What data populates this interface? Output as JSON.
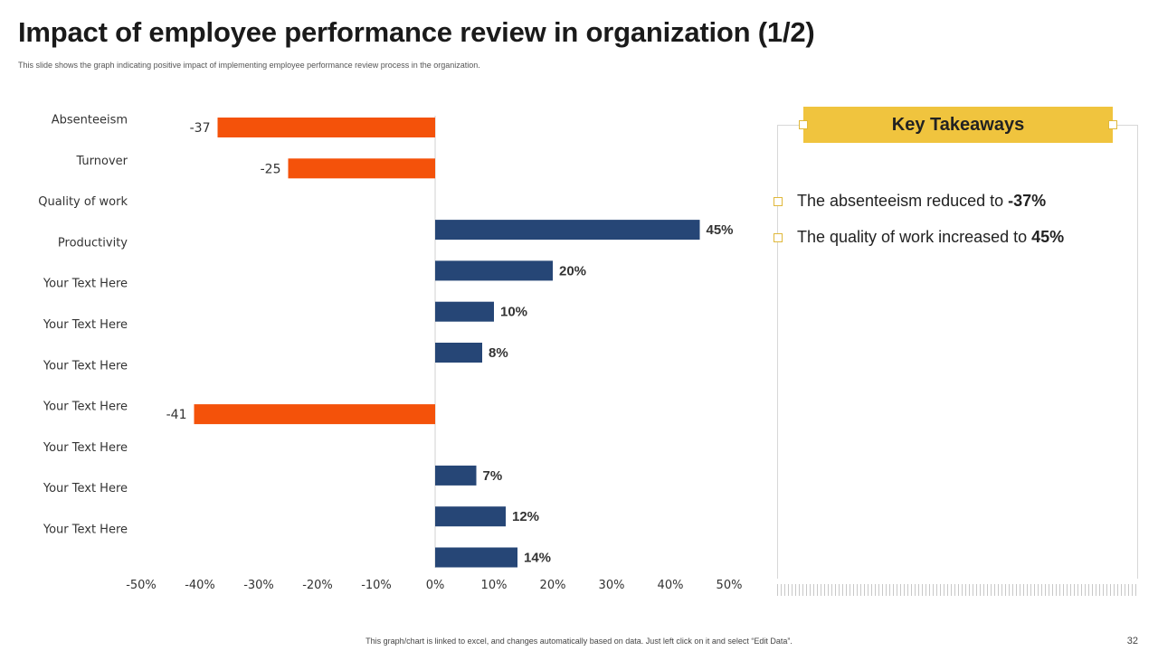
{
  "page": {
    "title": "Impact of employee performance review in organization (1/2)",
    "subtitle": "This slide shows the graph indicating positive impact of implementing  employee performance review process in the organization.",
    "footnote": "This graph/chart is linked to excel, and changes automatically based on data. Just left click on it and select “Edit Data”.",
    "page_number": "32"
  },
  "key_takeaways": {
    "header": "Key Takeaways",
    "items": [
      {
        "text": "The absenteeism reduced to",
        "highlight": "-37%"
      },
      {
        "text": "The quality of work increased to",
        "highlight": "45%"
      }
    ]
  },
  "chart_data": {
    "type": "bar",
    "orientation": "horizontal",
    "categories": [
      "Absenteeism",
      "Turnover",
      "Quality of work",
      "Productivity",
      "Your Text Here",
      "Your Text Here",
      "Your Text Here",
      "Your Text Here",
      "Your Text Here",
      "Your Text Here",
      "Your Text Here"
    ],
    "series": [
      {
        "name": "Decrease",
        "color": "#f4520a",
        "values": [
          -37,
          -25,
          null,
          null,
          null,
          null,
          null,
          -41,
          null,
          null,
          null
        ],
        "labels": [
          "-37",
          "-25",
          null,
          null,
          null,
          null,
          null,
          "-41",
          null,
          null,
          null
        ]
      },
      {
        "name": "Increase",
        "color": "#264676",
        "values": [
          null,
          null,
          45,
          20,
          10,
          8,
          null,
          null,
          7,
          12,
          14
        ],
        "labels": [
          null,
          null,
          "45%",
          "20%",
          "10%",
          "8%",
          null,
          null,
          "7%",
          "12%",
          "14%"
        ]
      }
    ],
    "xlim": [
      -50,
      50
    ],
    "xticks": [
      "-50%",
      "-40%",
      "-30%",
      "-20%",
      "-10%",
      "0%",
      "10%",
      "20%",
      "30%",
      "40%",
      "50%"
    ],
    "title": "",
    "xlabel": "",
    "ylabel": "",
    "grid": false,
    "legend": "none"
  }
}
